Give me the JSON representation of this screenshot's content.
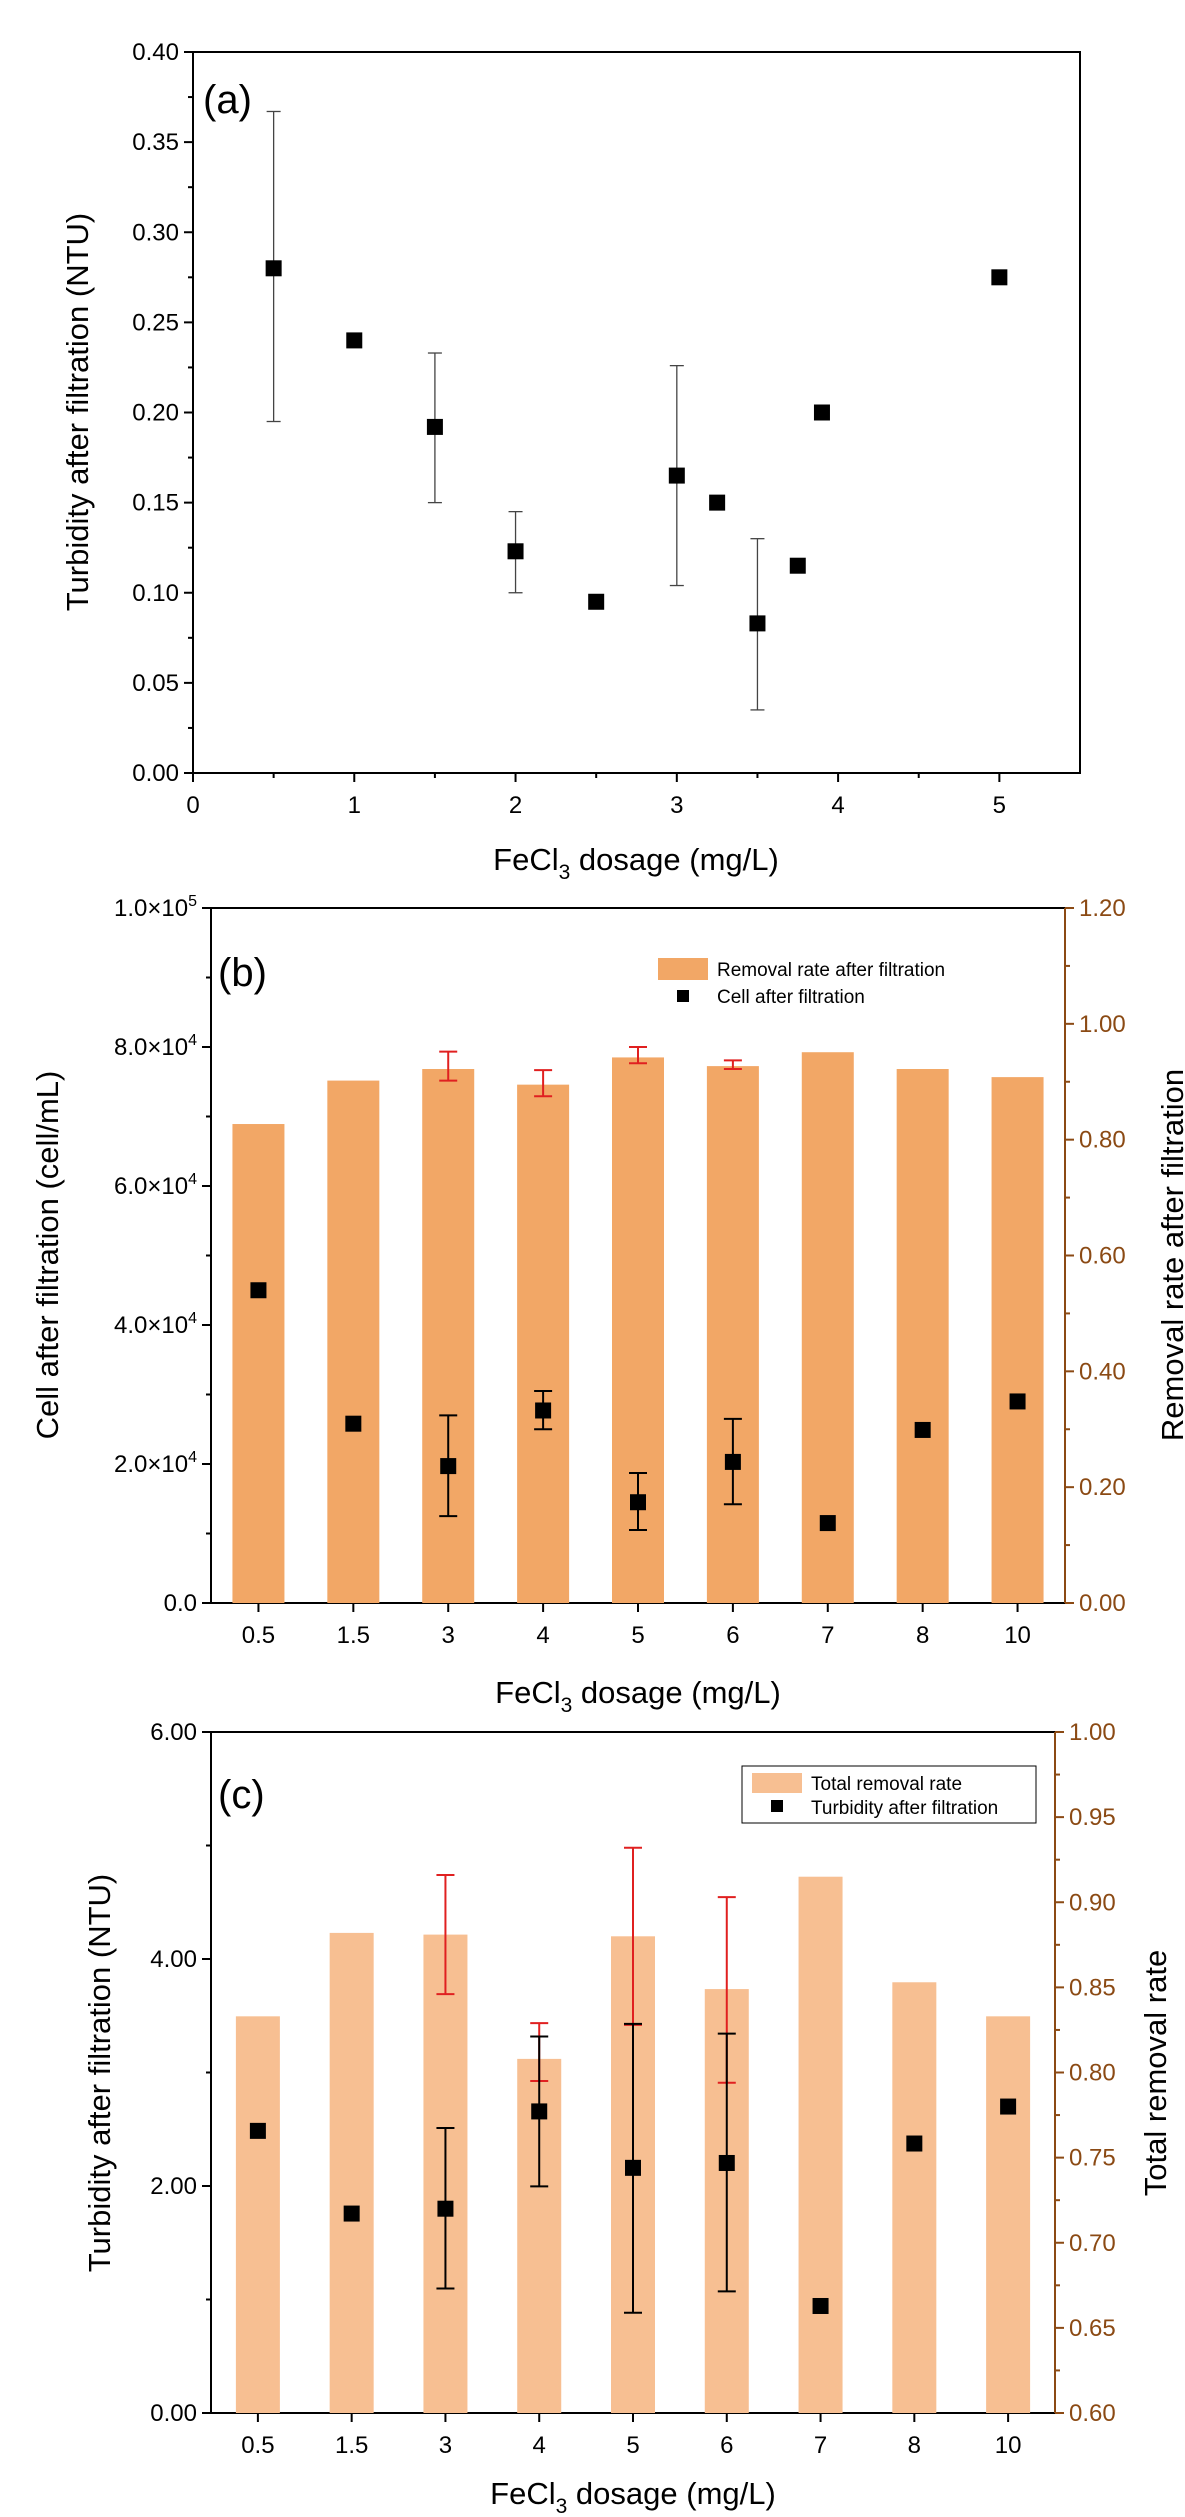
{
  "panels": [
    {
      "panel_label": "(a)",
      "xlabel_main": "FeCl",
      "xlabel_sub": "3",
      "xlabel_rest": " dosage (mg/L)",
      "ylabel": "Turbidity after filtration (NTU)"
    },
    {
      "panel_label": "(b)",
      "xlabel_main": "FeCl",
      "xlabel_sub": "3",
      "xlabel_rest": " dosage (mg/L)",
      "ylabel": "Cell after filtration (cell/mL)",
      "y2label": "Removal rate after filtration",
      "legend": [
        "Removal rate after filtration",
        "Cell after filtration"
      ]
    },
    {
      "panel_label": "(c)",
      "xlabel_main": "FeCl",
      "xlabel_sub": "3",
      "xlabel_rest": " dosage (mg/L)",
      "ylabel": "Turbidity after filtration (NTU)",
      "y2label": "Total removal rate",
      "legend": [
        "Total removal rate",
        "Turbidity after filtration"
      ]
    }
  ],
  "colors": {
    "bar_b": "#F2A766",
    "bar_c": "#F7BF92",
    "error_red": "#E02020",
    "right_axis": "#8B4A14",
    "marker": "#000000"
  },
  "chart_data": [
    {
      "type": "scatter",
      "x": [
        0.5,
        1,
        1.5,
        2,
        2.5,
        3,
        3.25,
        3.5,
        3.75,
        3.9,
        5
      ],
      "y": [
        0.28,
        0.24,
        0.192,
        0.123,
        0.095,
        0.165,
        0.15,
        0.083,
        0.115,
        0.2,
        0.275
      ],
      "yerr_low": [
        0.195,
        null,
        0.15,
        0.1,
        null,
        0.104,
        null,
        0.035,
        null,
        null,
        null
      ],
      "yerr_high": [
        0.367,
        null,
        0.233,
        0.145,
        null,
        0.226,
        null,
        0.13,
        null,
        null,
        null
      ],
      "xlim": [
        0,
        5.5
      ],
      "ylim": [
        0,
        0.4
      ],
      "xticks": [
        "0",
        "1",
        "2",
        "3",
        "4",
        "5"
      ],
      "yticks": [
        "0.00",
        "0.05",
        "0.10",
        "0.15",
        "0.20",
        "0.25",
        "0.30",
        "0.35",
        "0.40"
      ],
      "grid": false
    },
    {
      "type": "bar",
      "categories": [
        "0.5",
        "1.5",
        "3",
        "4",
        "5",
        "6",
        "7",
        "8",
        "10"
      ],
      "series": [
        {
          "name": "Removal rate after filtration",
          "axis": "right",
          "values": [
            0.827,
            0.902,
            0.922,
            0.895,
            0.942,
            0.927,
            0.951,
            0.922,
            0.908
          ],
          "err_low": [
            null,
            null,
            0.902,
            0.875,
            0.932,
            0.922,
            null,
            null,
            null
          ],
          "err_high": [
            null,
            null,
            0.952,
            0.92,
            0.96,
            0.937,
            null,
            null,
            null
          ]
        },
        {
          "name": "Cell after filtration",
          "axis": "left",
          "type": "scatter",
          "values": [
            45000,
            25800,
            19700,
            27700,
            14500,
            20300,
            11500,
            24900,
            29000
          ],
          "err_low": [
            null,
            null,
            12500,
            25000,
            10500,
            14200,
            null,
            null,
            null
          ],
          "err_high": [
            null,
            null,
            27000,
            30500,
            18700,
            26500,
            null,
            null,
            null
          ]
        }
      ],
      "yticks_left": [
        {
          "mant": "0.0",
          "exp": ""
        },
        {
          "mant": "2.0×10",
          "exp": "4"
        },
        {
          "mant": "4.0×10",
          "exp": "4"
        },
        {
          "mant": "6.0×10",
          "exp": "4"
        },
        {
          "mant": "8.0×10",
          "exp": "4"
        },
        {
          "mant": "1.0×10",
          "exp": "5"
        }
      ],
      "yticks_right": [
        "0.00",
        "0.20",
        "0.40",
        "0.60",
        "0.80",
        "1.00",
        "1.20"
      ],
      "ylim_left": [
        0,
        100000
      ],
      "ylim_right": [
        0,
        1.2
      ],
      "legend_position": "top-right",
      "grid": false
    },
    {
      "type": "bar",
      "categories": [
        "0.5",
        "1.5",
        "3",
        "4",
        "5",
        "6",
        "7",
        "8",
        "10"
      ],
      "series": [
        {
          "name": "Total removal rate",
          "axis": "right",
          "values": [
            0.833,
            0.882,
            0.881,
            0.808,
            0.88,
            0.849,
            0.915,
            0.853,
            0.833
          ],
          "err_low": [
            null,
            null,
            0.846,
            0.795,
            0.828,
            0.794,
            null,
            null,
            null
          ],
          "err_high": [
            null,
            null,
            0.916,
            0.829,
            0.932,
            0.903,
            null,
            null,
            null
          ]
        },
        {
          "name": "Turbidity after filtration",
          "axis": "left",
          "type": "scatter",
          "values": [
            2.9,
            2.05,
            2.1,
            3.1,
            2.52,
            2.57,
            1.1,
            2.77,
            3.15
          ],
          "err_low": [
            null,
            null,
            1.28,
            2.33,
            1.03,
            1.25,
            null,
            null,
            null
          ],
          "err_high": [
            null,
            null,
            2.93,
            3.87,
            4.0,
            3.9,
            null,
            null,
            null
          ]
        }
      ],
      "yticks_left": [
        "0.00",
        "2.00",
        "4.00",
        "6.00"
      ],
      "yticks_right": [
        "0.60",
        "0.65",
        "0.70",
        "0.75",
        "0.80",
        "0.85",
        "0.90",
        "0.95",
        "1.00"
      ],
      "ylim_left": [
        0,
        7
      ],
      "ylim_right": [
        0.6,
        1.0
      ],
      "legend_position": "top-right",
      "grid": false
    }
  ]
}
